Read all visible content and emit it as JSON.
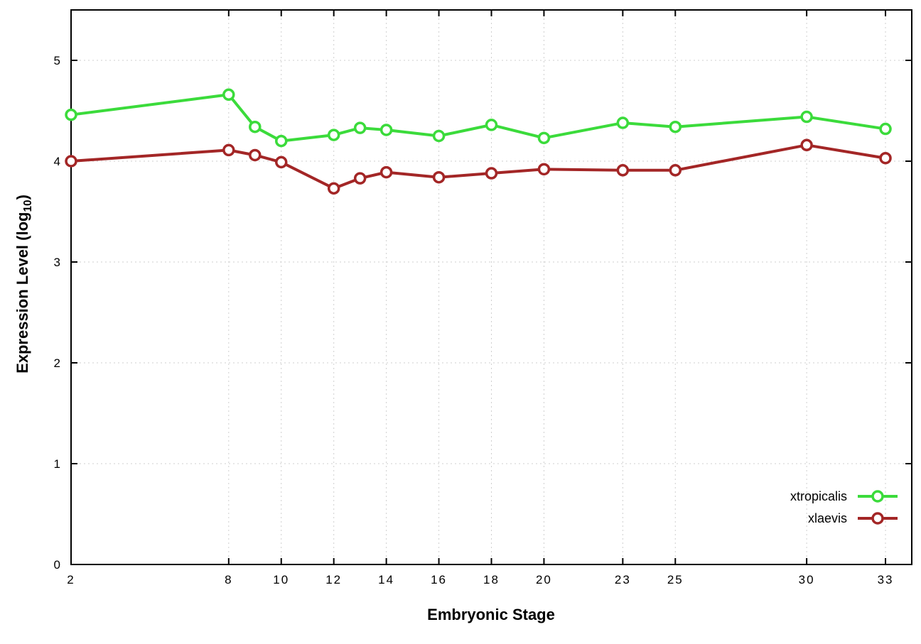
{
  "labels": {
    "ylabel_pre": "Expression Level (log",
    "ylabel_sub": "10",
    "ylabel_post": ")",
    "xlabel": "Embryonic Stage"
  },
  "chart_data": {
    "type": "line",
    "title": "",
    "xlabel": "Embryonic Stage",
    "ylabel": "Expression Level (log10)",
    "x": [
      2,
      8,
      9,
      10,
      12,
      13,
      14,
      16,
      18,
      20,
      23,
      25,
      30,
      33
    ],
    "xticks": [
      "2",
      "8",
      "10",
      "12",
      "14",
      "16",
      "18",
      "20",
      "23",
      "25",
      "30",
      "33"
    ],
    "xtick_values": [
      2,
      8,
      10,
      12,
      14,
      16,
      18,
      20,
      23,
      25,
      30,
      33
    ],
    "yticks": [
      0,
      1,
      2,
      3,
      4,
      5
    ],
    "xlim": [
      2,
      34
    ],
    "ylim": [
      0,
      5.5
    ],
    "grid": true,
    "legend_position": "right-center",
    "axis_color": "#000000",
    "grid_color": "#cfcfcf",
    "background": "#ffffff",
    "series": [
      {
        "name": "xtropicalis",
        "color": "#3bdb3b",
        "marker": "open-circle",
        "values": [
          4.46,
          4.66,
          4.34,
          4.2,
          4.26,
          4.33,
          4.31,
          4.25,
          4.36,
          4.23,
          4.38,
          4.34,
          4.44,
          4.32
        ]
      },
      {
        "name": "xlaevis",
        "color": "#a32626",
        "marker": "open-circle",
        "values": [
          4.0,
          4.11,
          4.06,
          3.99,
          3.73,
          3.83,
          3.89,
          3.84,
          3.88,
          3.92,
          3.91,
          3.91,
          4.16,
          4.03
        ]
      }
    ]
  }
}
